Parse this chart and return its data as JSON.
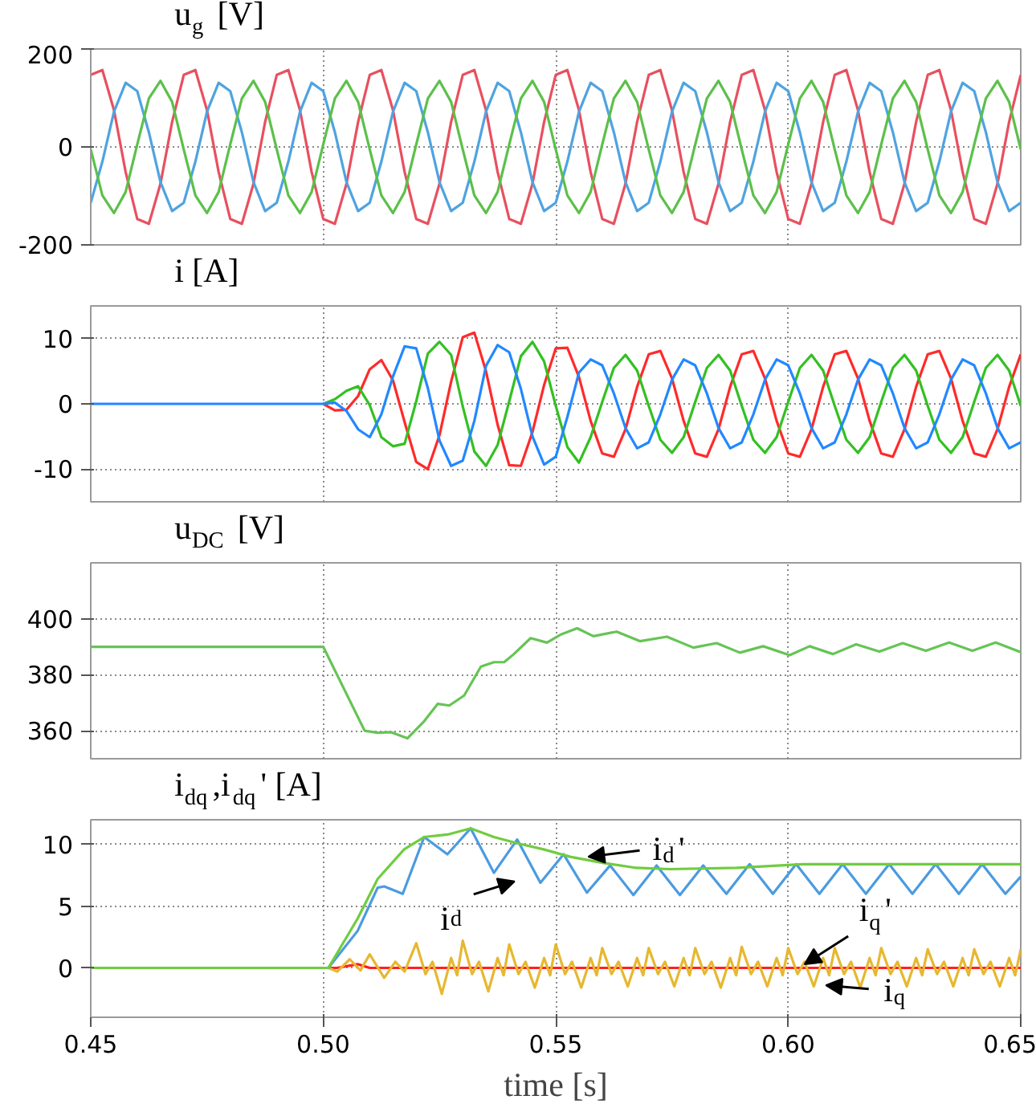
{
  "chart_data": [
    {
      "type": "line",
      "title": "u$_{g}$ [V]",
      "xlim": [
        0.45,
        0.65
      ],
      "xticks": [
        {
          "value": 0.45,
          "label": null
        },
        {
          "value": 0.5,
          "label": null
        },
        {
          "value": 0.55,
          "label": null
        },
        {
          "value": 0.6,
          "label": null
        },
        {
          "value": 0.65,
          "label": null
        }
      ],
      "ylim": [
        -200,
        200
      ],
      "yticks": [
        -200,
        0,
        200
      ],
      "grid": true,
      "tick_labels": "y",
      "x": [
        0.45,
        0.4525,
        0.455,
        0.4575,
        0.46,
        0.4625,
        0.465,
        0.4675,
        0.47,
        0.4725,
        0.475,
        0.4775,
        0.48,
        0.4825,
        0.485,
        0.4875,
        0.49,
        0.4925,
        0.495,
        0.4975,
        0.5,
        0.5025,
        0.505,
        0.5075,
        0.51,
        0.5125,
        0.515,
        0.5175,
        0.52,
        0.5225,
        0.525,
        0.5275,
        0.53,
        0.5325,
        0.535,
        0.5375,
        0.54,
        0.5425,
        0.545,
        0.5475,
        0.55,
        0.5525,
        0.555,
        0.5575,
        0.56,
        0.5625,
        0.565,
        0.5675,
        0.57,
        0.5725,
        0.575,
        0.5775,
        0.58,
        0.5825,
        0.585,
        0.5875,
        0.59,
        0.5925,
        0.595,
        0.5975,
        0.6,
        0.6025,
        0.605,
        0.6075,
        0.61,
        0.6125,
        0.615,
        0.6175,
        0.62,
        0.6225,
        0.625,
        0.6275,
        0.63,
        0.6325,
        0.635,
        0.6375,
        0.64,
        0.6425,
        0.645,
        0.6475,
        0.65
      ],
      "series": [
        {
          "color": "#e8505f",
          "values": [
            147,
            157,
            75,
            -51,
            -147,
            -157,
            -75,
            51,
            147,
            157,
            75,
            -51,
            -147,
            -157,
            -75,
            51,
            147,
            157,
            75,
            -51,
            -147,
            -157,
            -75,
            51,
            147,
            157,
            75,
            -51,
            -147,
            -157,
            -75,
            51,
            147,
            157,
            75,
            -51,
            -147,
            -157,
            -75,
            51,
            147,
            157,
            75,
            -51,
            -147,
            -157,
            -75,
            51,
            147,
            157,
            75,
            -51,
            -147,
            -157,
            -75,
            51,
            147,
            157,
            75,
            -51,
            -147,
            -157,
            -75,
            51,
            147,
            157,
            75,
            -51,
            -147,
            -157,
            -75,
            51,
            147,
            157,
            75,
            -51,
            -147,
            -157,
            -75,
            51,
            147
          ]
        },
        {
          "color": "#4fa3e0",
          "values": [
            -114,
            -30,
            72,
            131,
            114,
            30,
            -72,
            -131,
            -114,
            -30,
            72,
            131,
            114,
            30,
            -72,
            -131,
            -114,
            -30,
            72,
            131,
            114,
            30,
            -72,
            -131,
            -114,
            -30,
            72,
            131,
            114,
            30,
            -72,
            -131,
            -114,
            -30,
            72,
            131,
            114,
            30,
            -72,
            -131,
            -114,
            -30,
            72,
            131,
            114,
            30,
            -72,
            -131,
            -114,
            -30,
            72,
            131,
            114,
            30,
            -72,
            -131,
            -114,
            -30,
            72,
            131,
            114,
            30,
            -72,
            -131,
            -114,
            -30,
            72,
            131,
            114,
            30,
            -72,
            -131,
            -114,
            -30,
            72,
            131,
            114,
            30,
            -72,
            -131,
            -114
          ]
        },
        {
          "color": "#5cc04a",
          "values": [
            -5,
            -99,
            -135,
            -92,
            5,
            99,
            135,
            92,
            -5,
            -99,
            -135,
            -92,
            5,
            99,
            135,
            92,
            -5,
            -99,
            -135,
            -92,
            5,
            99,
            135,
            92,
            -5,
            -99,
            -135,
            -92,
            5,
            99,
            135,
            92,
            -5,
            -99,
            -135,
            -92,
            5,
            99,
            135,
            92,
            -5,
            -99,
            -135,
            -92,
            5,
            99,
            135,
            92,
            -5,
            -99,
            -135,
            -92,
            5,
            99,
            135,
            92,
            -5,
            -99,
            -135,
            -92,
            5,
            99,
            135,
            92,
            -5,
            -99,
            -135,
            -92,
            5,
            99,
            135,
            92,
            -5,
            -99,
            -135,
            -92,
            5,
            99,
            135,
            92,
            -5
          ]
        }
      ]
    },
    {
      "type": "line",
      "title": "i [A]",
      "xlim": [
        0.45,
        0.65
      ],
      "xticks": [
        {
          "value": 0.45,
          "label": null
        },
        {
          "value": 0.5,
          "label": null
        },
        {
          "value": 0.55,
          "label": null
        },
        {
          "value": 0.6,
          "label": null
        },
        {
          "value": 0.65,
          "label": null
        }
      ],
      "ylim": [
        -15,
        15
      ],
      "yticks": [
        -10,
        0,
        10
      ],
      "grid": true,
      "tick_labels": "y",
      "x": [
        0.45,
        0.4525,
        0.455,
        0.4575,
        0.46,
        0.4625,
        0.465,
        0.4675,
        0.47,
        0.4725,
        0.475,
        0.4775,
        0.48,
        0.4825,
        0.485,
        0.4875,
        0.49,
        0.4925,
        0.495,
        0.4975,
        0.5,
        0.5025,
        0.505,
        0.5075,
        0.51,
        0.5125,
        0.515,
        0.5175,
        0.52,
        0.5225,
        0.525,
        0.5275,
        0.53,
        0.5325,
        0.535,
        0.5375,
        0.54,
        0.5425,
        0.545,
        0.5475,
        0.55,
        0.5525,
        0.555,
        0.5575,
        0.56,
        0.5625,
        0.565,
        0.5675,
        0.57,
        0.5725,
        0.575,
        0.5775,
        0.58,
        0.5825,
        0.585,
        0.5875,
        0.59,
        0.5925,
        0.595,
        0.5975,
        0.6,
        0.6025,
        0.605,
        0.6075,
        0.61,
        0.6125,
        0.615,
        0.6175,
        0.62,
        0.6225,
        0.625,
        0.6275,
        0.63,
        0.6325,
        0.635,
        0.6375,
        0.64,
        0.6425,
        0.645,
        0.6475,
        0.65
      ],
      "series": [
        {
          "color": "#ff2a2a",
          "values": [
            null,
            null,
            null,
            null,
            null,
            null,
            null,
            null,
            null,
            null,
            null,
            null,
            null,
            null,
            null,
            null,
            null,
            null,
            null,
            null,
            0,
            -1.0,
            -0.9,
            1.2,
            5.3,
            6.7,
            3.6,
            -2.8,
            -8.9,
            -10.0,
            -4.8,
            3.4,
            10.2,
            10.9,
            5.0,
            -3.2,
            -9.4,
            -9.5,
            -4.3,
            2.9,
            8.5,
            8.6,
            4.1,
            -2.6,
            -7.6,
            -8.1,
            -3.9,
            2.6,
            7.6,
            8.1,
            3.9,
            -2.6,
            -7.6,
            -8.1,
            -3.9,
            2.6,
            7.6,
            8.1,
            3.9,
            -2.6,
            -7.6,
            -8.1,
            -3.9,
            2.6,
            7.6,
            8.1,
            3.9,
            -2.6,
            -7.6,
            -8.1,
            -3.9,
            2.6,
            7.6,
            8.1,
            3.9,
            -2.6,
            -7.6,
            -8.1,
            -3.9,
            2.6,
            7.6
          ]
        },
        {
          "color": "#33c022",
          "values": [
            null,
            null,
            null,
            null,
            null,
            null,
            null,
            null,
            null,
            null,
            null,
            null,
            null,
            null,
            null,
            null,
            null,
            null,
            null,
            null,
            0,
            0.7,
            2.0,
            2.7,
            -0.2,
            -5.1,
            -6.5,
            -6.1,
            0.4,
            7.7,
            9.5,
            7.5,
            -0.4,
            -7.3,
            -9.5,
            -6.3,
            0.4,
            7.3,
            9.5,
            6.5,
            -0.3,
            -6.6,
            -9.0,
            -5.1,
            0.3,
            5.5,
            7.5,
            5.1,
            -0.3,
            -5.5,
            -7.5,
            -5.1,
            0.3,
            5.5,
            7.5,
            5.1,
            -0.3,
            -5.5,
            -7.5,
            -5.1,
            0.3,
            5.5,
            7.5,
            5.1,
            -0.3,
            -5.5,
            -7.5,
            -5.1,
            0.3,
            5.5,
            7.5,
            5.1,
            -0.3,
            -5.5,
            -7.5,
            -5.1,
            0.3,
            5.5,
            7.5,
            5.1,
            -0.3
          ]
        },
        {
          "color": "#2288ff",
          "values": [
            0,
            0,
            0,
            0,
            0,
            0,
            0,
            0,
            0,
            0,
            0,
            0,
            0,
            0,
            0,
            0,
            0,
            0,
            0,
            0,
            0,
            0.2,
            -1.1,
            -3.9,
            -5.1,
            -1.6,
            4.2,
            8.8,
            8.5,
            2.4,
            -5.6,
            -9.5,
            -8.7,
            -2.6,
            5.8,
            9.0,
            7.9,
            2.3,
            -5.0,
            -9.3,
            -8.1,
            -2.0,
            4.8,
            6.8,
            5.9,
            1.6,
            -3.7,
            -6.8,
            -5.9,
            -1.6,
            3.7,
            6.8,
            5.9,
            1.6,
            -3.7,
            -6.8,
            -5.9,
            -1.6,
            3.7,
            6.8,
            5.9,
            1.6,
            -3.7,
            -6.8,
            -5.9,
            -1.6,
            3.7,
            6.8,
            5.9,
            1.6,
            -3.7,
            -6.8,
            -5.9,
            -1.6,
            3.7,
            6.8,
            5.9,
            1.6,
            -3.7,
            -6.8,
            -5.9
          ]
        }
      ]
    },
    {
      "type": "line",
      "title": "u$_{DC}$ [V]",
      "xlim": [
        0.45,
        0.65
      ],
      "xticks": [
        {
          "value": 0.45,
          "label": null
        },
        {
          "value": 0.5,
          "label": null
        },
        {
          "value": 0.55,
          "label": null
        },
        {
          "value": 0.6,
          "label": null
        },
        {
          "value": 0.65,
          "label": null
        }
      ],
      "ylim": [
        350,
        420
      ],
      "yticks": [
        360,
        380,
        400
      ],
      "grid": true,
      "tick_labels": "y",
      "series": [
        {
          "color": "#66c455",
          "x": [
            0.45,
            0.5,
            0.5089,
            0.5117,
            0.5146,
            0.5181,
            0.5217,
            0.5246,
            0.5271,
            0.5303,
            0.5339,
            0.5367,
            0.5389,
            0.541,
            0.5446,
            0.5481,
            0.551,
            0.5546,
            0.5581,
            0.5631,
            0.5681,
            0.5739,
            0.5796,
            0.5846,
            0.5896,
            0.5946,
            0.6003,
            0.6046,
            0.6096,
            0.6146,
            0.6196,
            0.6246,
            0.6296,
            0.6346,
            0.6396,
            0.6446,
            0.65
          ],
          "values": [
            390,
            390,
            360,
            359.3,
            359.5,
            357.3,
            363.4,
            369.6,
            369,
            372.6,
            382.9,
            384.5,
            384.5,
            387.4,
            393.1,
            391.5,
            394.3,
            396.6,
            393.8,
            395.4,
            392,
            393.6,
            389.7,
            391.3,
            387.9,
            390.2,
            387,
            390.2,
            387.4,
            390.9,
            388.3,
            391.3,
            388.6,
            391.5,
            388.6,
            391.5,
            388.1
          ]
        }
      ]
    },
    {
      "type": "line",
      "title": "i$_{dq}$,i$_{dq}$' [A]",
      "xlabel": "time [s]",
      "xlim": [
        0.45,
        0.65
      ],
      "xticks": [
        {
          "value": 0.45,
          "label": "0.45"
        },
        {
          "value": 0.5,
          "label": "0.50"
        },
        {
          "value": 0.55,
          "label": "0.55"
        },
        {
          "value": 0.6,
          "label": "0.60"
        },
        {
          "value": 0.65,
          "label": "0.65"
        }
      ],
      "ylim": [
        -4,
        12
      ],
      "yticks": [
        0,
        5,
        10
      ],
      "grid": true,
      "series": [
        {
          "color": "#ff2020",
          "x": [
            0.45,
            0.503,
            0.5074,
            0.51,
            0.65
          ],
          "values": [
            0,
            0,
            0.3,
            0,
            0
          ]
        },
        {
          "color": "#e6b830",
          "x": [
            0.45,
            0.5011,
            0.503,
            0.5057,
            0.508,
            0.51,
            0.5131,
            0.5155,
            0.5175,
            0.52,
            0.522,
            0.5235,
            0.5255,
            0.5275,
            0.5288,
            0.53,
            0.532,
            0.5335,
            0.5355,
            0.5375,
            0.5388,
            0.54,
            0.542,
            0.5435,
            0.5455,
            0.5475,
            0.5488,
            0.55,
            0.552,
            0.5535,
            0.5555,
            0.5575,
            0.5588,
            0.56,
            0.562,
            0.5635,
            0.5655,
            0.5675,
            0.5688,
            0.57,
            0.572,
            0.5735,
            0.5755,
            0.5775,
            0.5788,
            0.58,
            0.582,
            0.5835,
            0.5855,
            0.5875,
            0.5888,
            0.59,
            0.592,
            0.5935,
            0.5955,
            0.5975,
            0.5988,
            0.6,
            0.602,
            0.6035,
            0.6055,
            0.6075,
            0.6088,
            0.61,
            0.612,
            0.6135,
            0.6155,
            0.6175,
            0.6188,
            0.62,
            0.622,
            0.6235,
            0.6255,
            0.6275,
            0.6288,
            0.63,
            0.632,
            0.6335,
            0.6355,
            0.6375,
            0.6388,
            0.64,
            0.642,
            0.6435,
            0.6455,
            0.6475,
            0.6488,
            0.65
          ],
          "values": [
            0,
            0,
            -0.3,
            0.7,
            -0.2,
            1.1,
            -0.8,
            0.5,
            -0.3,
            2.0,
            -0.5,
            0.5,
            -2.1,
            0.8,
            -0.6,
            2.2,
            -0.5,
            0.5,
            -1.9,
            0.8,
            -0.6,
            1.9,
            -0.5,
            0.5,
            -1.6,
            0.8,
            -0.6,
            1.9,
            -0.5,
            0.5,
            -1.6,
            0.8,
            -0.6,
            1.6,
            -0.5,
            0.5,
            -1.5,
            0.8,
            -0.6,
            1.6,
            -0.5,
            0.5,
            -1.5,
            0.8,
            -0.6,
            1.6,
            -0.5,
            0.5,
            -1.6,
            0.8,
            -0.6,
            1.7,
            -0.5,
            0.5,
            -1.5,
            0.8,
            -0.6,
            1.6,
            -0.5,
            0.5,
            -1.5,
            0.8,
            -0.6,
            1.6,
            -0.5,
            0.5,
            -1.6,
            0.8,
            -0.6,
            1.6,
            -0.5,
            0.5,
            -1.5,
            0.8,
            -0.6,
            1.5,
            -0.5,
            0.5,
            -1.5,
            0.8,
            -0.6,
            1.5,
            -0.5,
            0.5,
            -1.5,
            0.8,
            -0.6,
            1.5
          ]
        },
        {
          "color": "#4b9be0",
          "x": [
            0.45,
            0.5011,
            0.5074,
            0.5117,
            0.5131,
            0.5171,
            0.5217,
            0.5267,
            0.5317,
            0.5367,
            0.5417,
            0.5467,
            0.5517,
            0.5567,
            0.5617,
            0.5667,
            0.5717,
            0.5767,
            0.5817,
            0.5867,
            0.5917,
            0.5967,
            0.6017,
            0.6067,
            0.6117,
            0.6167,
            0.6217,
            0.6267,
            0.6317,
            0.6367,
            0.6417,
            0.6467,
            0.65
          ],
          "values": [
            0,
            0,
            3.0,
            6.5,
            6.6,
            6.0,
            10.6,
            9.2,
            11.3,
            7.7,
            10.4,
            6.9,
            9.2,
            6.1,
            8.3,
            5.9,
            8.3,
            5.9,
            8.3,
            6.0,
            8.4,
            6.0,
            8.4,
            6.0,
            8.4,
            6.0,
            8.4,
            6.0,
            8.4,
            6.0,
            8.4,
            6.0,
            7.4
          ]
        },
        {
          "color": "#70cc40",
          "x": [
            0.45,
            0.5011,
            0.5074,
            0.5117,
            0.5174,
            0.5217,
            0.5267,
            0.5317,
            0.5367,
            0.5417,
            0.5474,
            0.5531,
            0.5603,
            0.5674,
            0.5746,
            0.5889,
            0.6031,
            0.6174,
            0.6317,
            0.65
          ],
          "values": [
            0,
            0,
            4.0,
            7.2,
            9.6,
            10.6,
            10.8,
            11.3,
            10.6,
            10.1,
            9.6,
            9.0,
            8.5,
            8.1,
            8.0,
            8.1,
            8.4,
            8.4,
            8.4,
            8.4
          ]
        }
      ],
      "annotations": [
        {
          "text": "i$_{d}$'",
          "x": 0.557,
          "y": 9.0
        },
        {
          "text": "i$_{d}$",
          "x": 0.5445,
          "y": 7.4
        },
        {
          "text": "i$_{q}$'",
          "x": 0.6035,
          "y": 0.3
        },
        {
          "text": "i$_{q}$",
          "x": 0.6046,
          "y": -1.3
        }
      ]
    }
  ]
}
